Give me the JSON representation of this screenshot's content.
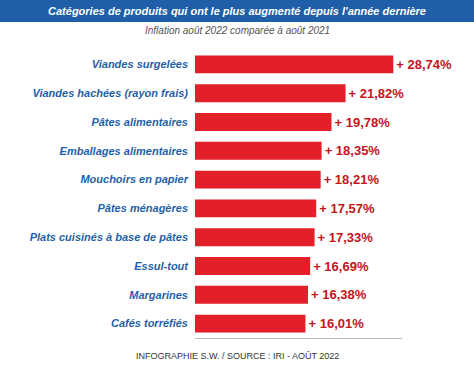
{
  "chart_data": {
    "type": "bar",
    "orientation": "horizontal",
    "title": "Catégories de produits qui ont le plus augmenté depuis l'année dernière",
    "subtitle": "Inflation août 2022 comparée à août 2021",
    "source": "INFOGRAPHIE S.W. / SOURCE : IRI - AOÛT 2022",
    "categories": [
      "Viandes surgelées",
      "Viandes hachées (rayon frais)",
      "Pâtes alimentaires",
      "Emballages alimentaires",
      "Mouchoirs en papier",
      "Pâtes ménagères",
      "Plats cuisinés à base de pâtes",
      "Essul-tout",
      "Margarines",
      "Cafés torréfiés"
    ],
    "values": [
      28.74,
      21.82,
      19.78,
      18.35,
      18.21,
      17.57,
      17.33,
      16.69,
      16.38,
      16.01
    ],
    "value_labels": [
      "+ 28,74%",
      "+ 21,82%",
      "+ 19,78%",
      "+ 18,35%",
      "+ 18,21%",
      "+ 17,57%",
      "+ 17,33%",
      "+ 16,69%",
      "+ 16,38%",
      "+ 16,01%"
    ],
    "color": "#e3202a",
    "xlim": [
      0,
      30
    ],
    "xticks": [],
    "grid": false,
    "data_labels": true,
    "tick_labels": "y"
  }
}
